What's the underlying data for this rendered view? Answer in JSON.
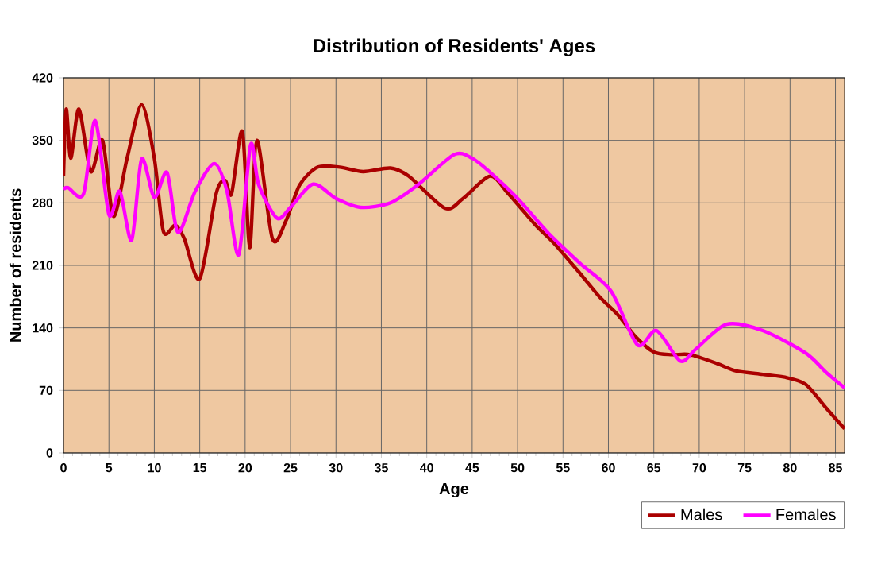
{
  "chart_data": {
    "type": "line",
    "title": "Distribution of Residents' Ages",
    "xlabel": "Age",
    "ylabel": "Number of residents",
    "xlim": [
      0,
      86
    ],
    "ylim": [
      0,
      420
    ],
    "xticks": [
      0,
      5,
      10,
      15,
      20,
      25,
      30,
      35,
      40,
      45,
      50,
      55,
      60,
      65,
      70,
      75,
      80,
      85
    ],
    "yticks": [
      0,
      70,
      140,
      210,
      280,
      350,
      420
    ],
    "grid": true,
    "legend": "bottom right",
    "marker": "none",
    "line_style": "solid",
    "series": [
      {
        "name": "Males",
        "color": "#aa0000",
        "x": [
          0,
          0.3,
          0.8,
          1.7,
          3,
          4.3,
          5.5,
          7,
          8.6,
          10,
          11,
          12.3,
          13.3,
          15,
          16.8,
          17.8,
          18.5,
          19.7,
          20.5,
          21.3,
          23,
          24.5,
          26,
          28,
          30.4,
          33,
          36,
          38,
          42,
          44,
          47,
          49,
          52,
          54,
          56.8,
          59,
          61,
          63,
          65,
          67,
          69,
          72,
          74,
          77,
          79.3,
          81.7,
          84,
          86
        ],
        "values": [
          310,
          385,
          330,
          385,
          315,
          350,
          265,
          330,
          390,
          330,
          248,
          255,
          240,
          195,
          290,
          305,
          290,
          360,
          230,
          350,
          240,
          260,
          300,
          320,
          320,
          315,
          319,
          310,
          274,
          285,
          310,
          290,
          255,
          235,
          202,
          175,
          155,
          130,
          113,
          110,
          110,
          100,
          92,
          88,
          85,
          77,
          50,
          27
        ]
      },
      {
        "name": "Females",
        "color": "#ff00ff",
        "x": [
          0,
          0.5,
          2.2,
          3.5,
          5,
          6.2,
          7.5,
          8.6,
          10,
          11.4,
          12.6,
          14.5,
          16.6,
          18,
          19.3,
          20.6,
          21.5,
          23.5,
          25,
          27.5,
          30,
          32.7,
          36,
          39,
          43,
          45,
          47,
          50,
          53.4,
          56.8,
          60.3,
          63.2,
          65.3,
          67.9,
          69.6,
          73,
          77,
          81.7,
          84,
          86
        ],
        "values": [
          295,
          297,
          290,
          372,
          267,
          293,
          238,
          329,
          286,
          314,
          247,
          293,
          324,
          293,
          222,
          345,
          300,
          263,
          275,
          301,
          285,
          275,
          280,
          300,
          334,
          330,
          314,
          285,
          246,
          213,
          181,
          121,
          137,
          103,
          116,
          144,
          137,
          112,
          90,
          73
        ]
      }
    ]
  }
}
